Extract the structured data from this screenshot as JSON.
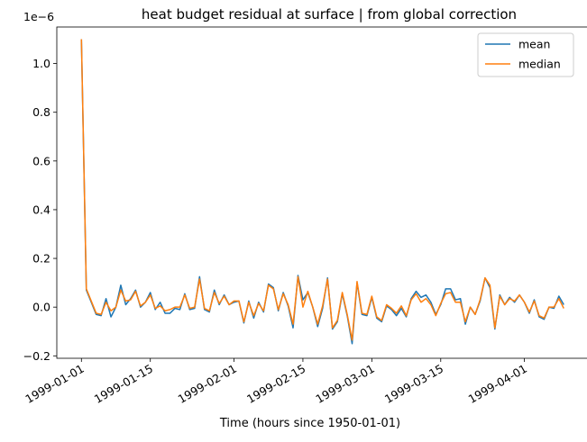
{
  "chart_data": {
    "type": "line",
    "title": "heat budget residual at surface | from global correction",
    "xlabel": "Time (hours since 1950-01-01)",
    "ylabel": "",
    "y_multiplier_label": "1e−6",
    "ylim": [
      -0.21,
      1.15
    ],
    "yticks": [
      -0.2,
      0.0,
      0.2,
      0.4,
      0.6,
      0.8,
      1.0
    ],
    "ytick_labels": [
      "−0.2",
      "0.0",
      "0.2",
      "0.4",
      "0.6",
      "0.8",
      "1.0"
    ],
    "x_start_date": "1999-01-01",
    "x_step_days": 1,
    "xlim_dates": [
      "1998-12-27",
      "1999-04-15"
    ],
    "xticks": [
      {
        "date": "1999-01-01",
        "label": "1999-01-01"
      },
      {
        "date": "1999-01-15",
        "label": "1999-01-15"
      },
      {
        "date": "1999-02-01",
        "label": "1999-02-01"
      },
      {
        "date": "1999-02-15",
        "label": "1999-02-15"
      },
      {
        "date": "1999-03-01",
        "label": "1999-03-01"
      },
      {
        "date": "1999-03-15",
        "label": "1999-03-15"
      },
      {
        "date": "1999-04-01",
        "label": "1999-04-01"
      }
    ],
    "grid": false,
    "legend_position": "top-right",
    "series": [
      {
        "name": "mean",
        "color": "#1f77b4",
        "values": [
          1.1,
          0.07,
          0.02,
          -0.03,
          -0.035,
          0.035,
          -0.04,
          0.0,
          0.09,
          0.01,
          0.035,
          0.07,
          0.0,
          0.02,
          0.06,
          -0.01,
          0.02,
          -0.025,
          -0.025,
          -0.005,
          -0.01,
          0.055,
          -0.01,
          -0.005,
          0.125,
          -0.01,
          -0.02,
          0.07,
          0.01,
          0.05,
          0.01,
          0.02,
          0.025,
          -0.065,
          0.025,
          -0.045,
          0.02,
          -0.02,
          0.095,
          0.08,
          -0.015,
          0.06,
          0.005,
          -0.085,
          0.13,
          0.03,
          0.06,
          0.0,
          -0.08,
          -0.005,
          0.12,
          -0.09,
          -0.06,
          0.055,
          -0.035,
          -0.15,
          0.1,
          -0.03,
          -0.035,
          0.04,
          -0.045,
          -0.06,
          0.005,
          -0.01,
          -0.035,
          -0.005,
          -0.04,
          0.035,
          0.065,
          0.04,
          0.05,
          0.02,
          -0.03,
          0.01,
          0.075,
          0.075,
          0.03,
          0.035,
          -0.07,
          0.0,
          -0.03,
          0.025,
          0.12,
          0.08,
          -0.09,
          0.05,
          0.01,
          0.04,
          0.02,
          0.05,
          0.02,
          -0.025,
          0.03,
          -0.04,
          -0.05,
          0.0,
          -0.005,
          0.045,
          0.01
        ]
      },
      {
        "name": "median",
        "color": "#ff7f0e",
        "values": [
          1.1,
          0.075,
          0.025,
          -0.025,
          -0.03,
          0.02,
          -0.015,
          0.0,
          0.07,
          0.025,
          0.03,
          0.065,
          0.005,
          0.02,
          0.05,
          -0.005,
          0.005,
          -0.015,
          -0.01,
          0.0,
          0.0,
          0.05,
          -0.005,
          0.0,
          0.115,
          -0.005,
          -0.015,
          0.06,
          0.015,
          0.045,
          0.01,
          0.025,
          0.025,
          -0.06,
          0.02,
          -0.035,
          0.015,
          -0.015,
          0.09,
          0.075,
          -0.01,
          0.055,
          0.01,
          -0.07,
          0.125,
          0.0,
          0.065,
          0.0,
          -0.07,
          0.005,
          0.115,
          -0.085,
          -0.055,
          0.06,
          -0.03,
          -0.135,
          0.105,
          -0.025,
          -0.03,
          0.045,
          -0.04,
          -0.055,
          0.01,
          -0.005,
          -0.025,
          0.005,
          -0.035,
          0.03,
          0.055,
          0.02,
          0.035,
          0.01,
          -0.035,
          0.015,
          0.055,
          0.06,
          0.02,
          0.02,
          -0.06,
          0.0,
          -0.03,
          0.03,
          0.12,
          0.09,
          -0.085,
          0.045,
          0.01,
          0.035,
          0.025,
          0.05,
          0.02,
          -0.02,
          0.025,
          -0.035,
          -0.045,
          0.0,
          0.0,
          0.035,
          -0.005
        ]
      }
    ]
  }
}
